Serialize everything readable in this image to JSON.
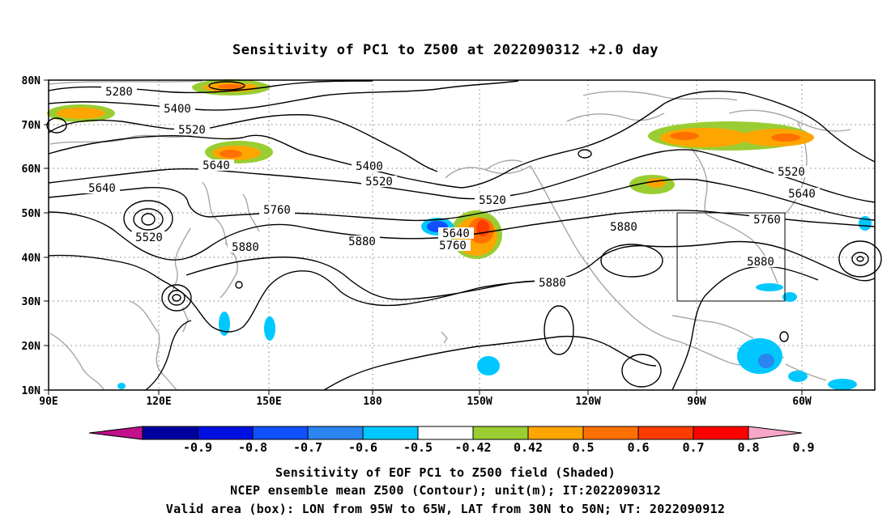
{
  "title": "Sensitivity of PC1 to Z500 at 2022090312 +2.0 day",
  "axes": {
    "lon_ticks": [
      "90E",
      "120E",
      "150E",
      "180",
      "150W",
      "120W",
      "90W",
      "60W"
    ],
    "lat_ticks": [
      "80N",
      "70N",
      "60N",
      "50N",
      "40N",
      "30N",
      "20N",
      "10N"
    ]
  },
  "contour_labels": [
    "5280",
    "5400",
    "5520",
    "5640",
    "5400",
    "5520",
    "5640",
    "5760",
    "5520",
    "5880",
    "5880",
    "5640",
    "5760",
    "5520",
    "5880",
    "5880",
    "5520",
    "5640",
    "5760",
    "5880"
  ],
  "colorbar": {
    "labels": [
      "-0.9",
      "-0.8",
      "-0.7",
      "-0.6",
      "-0.5",
      "-0.42",
      "0.42",
      "0.5",
      "0.6",
      "0.7",
      "0.8",
      "0.9"
    ],
    "colors": [
      "#c0108a",
      "#0000a0",
      "#0010e0",
      "#1050ff",
      "#2a85f0",
      "#00c8ff",
      "#ffffff",
      "#9acd32",
      "#ffa500",
      "#ff7000",
      "#ff3c00",
      "#ff0000",
      "#f7a6c8"
    ]
  },
  "caption": {
    "line1": "Sensitivity of EOF PC1 to Z500 field (Shaded)",
    "line2": "NCEP ensemble mean Z500 (Contour); unit(m); IT:2022090312",
    "line3": "Valid area (box): LON from 95W to 65W, LAT from 30N to 50N; VT: 2022090912"
  }
}
